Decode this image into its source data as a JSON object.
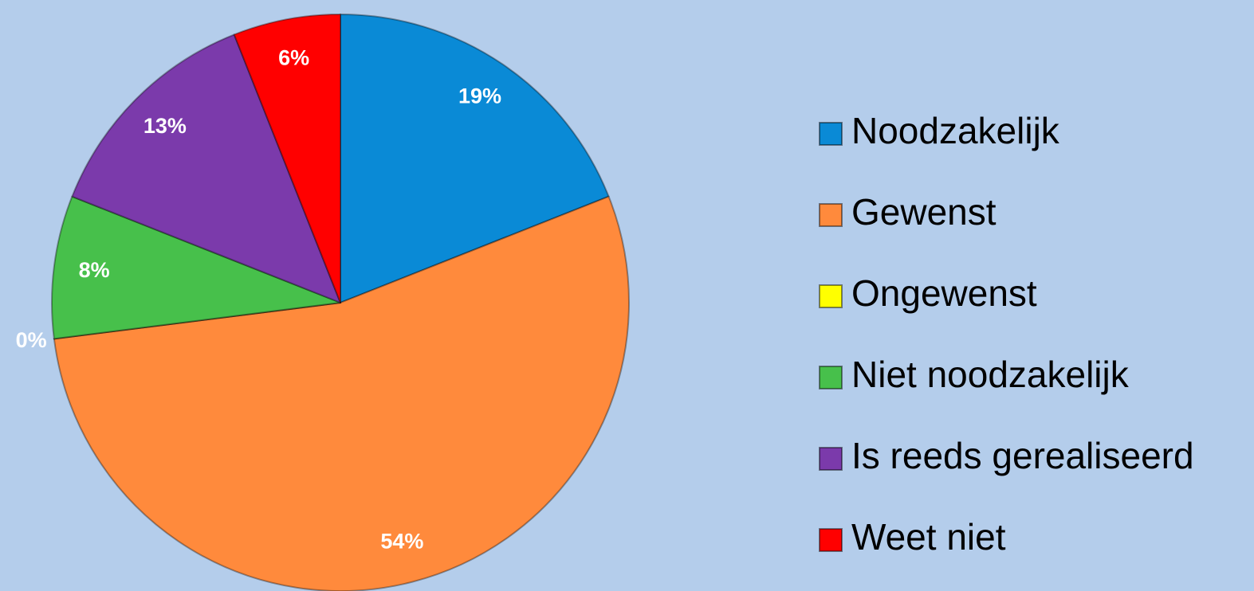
{
  "chart_data": {
    "type": "pie",
    "categories": [
      "Noodzakelijk",
      "Gewenst",
      "Ongewenst",
      "Niet noodzakelijk",
      "Is reeds gerealiseerd",
      "Weet niet"
    ],
    "values": [
      19,
      54,
      0,
      8,
      13,
      6
    ],
    "value_labels": [
      "19%",
      "54%",
      "0%",
      "8%",
      "13%",
      "6%"
    ],
    "colors": [
      "#0a8ad6",
      "#ff8a3c",
      "#ffff00",
      "#47c04b",
      "#7b3aab",
      "#ff0000"
    ],
    "legend": "right"
  }
}
